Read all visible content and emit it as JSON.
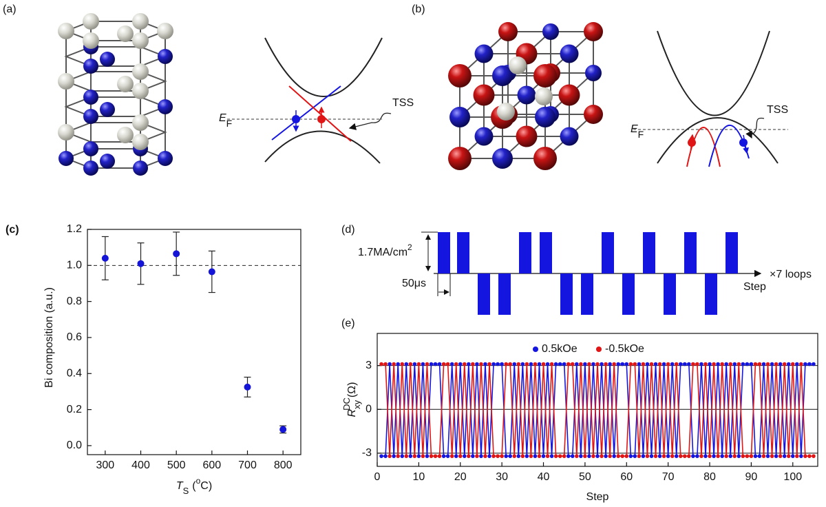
{
  "panels": {
    "a": {
      "label": "(a)",
      "fermi_level": {
        "symbol": "E",
        "subscript": "F"
      },
      "state": "TSS"
    },
    "b": {
      "label": "(b)",
      "fermi_level": {
        "symbol": "E",
        "subscript": "F"
      },
      "state": "TSS"
    },
    "d": {
      "label": "(d)",
      "amplitude": {
        "text": "1.7MA/cm",
        "superscript": "2"
      },
      "width": "50μs",
      "repeat": "×7 loops",
      "axis": "Step"
    }
  },
  "chart_data": [
    {
      "type": "scatter",
      "label": "(c)",
      "xlabel": {
        "symbol": "T",
        "subscript": "S",
        "open": "(",
        "superscript": "o",
        "close": "C)"
      },
      "ylabel": "Bi composition (a.u.)",
      "x": [
        300,
        400,
        500,
        600,
        700,
        800
      ],
      "values": [
        1.04,
        1.01,
        1.065,
        0.965,
        0.325,
        0.09
      ],
      "errors": [
        0.12,
        0.115,
        0.12,
        0.115,
        0.055,
        0.02
      ],
      "color": "#1515d8",
      "reference_line": 1,
      "xlim": [
        250,
        850
      ],
      "ylim": [
        -0.05,
        1.2
      ],
      "xticks": [
        300,
        400,
        500,
        600,
        700,
        800
      ],
      "yticks": [
        {
          "value": 0,
          "label": "0.0"
        },
        0.2,
        0.4,
        0.6,
        0.8,
        {
          "value": 1,
          "label": "1.0"
        },
        1.2
      ]
    },
    {
      "type": "line",
      "label": "(e)",
      "xlabel": "Step",
      "ylabel": {
        "symbol": "R",
        "subscript": "xy",
        "superscript": "DC",
        "unit": "(Ω)"
      },
      "x": [
        1,
        2,
        3,
        4,
        5,
        6,
        7,
        8,
        9,
        10,
        11,
        12,
        13,
        14,
        15,
        16,
        17,
        18,
        19,
        20,
        21,
        22,
        23,
        24,
        25,
        26,
        27,
        28,
        29,
        30,
        31,
        32,
        33,
        34,
        35,
        36,
        37,
        38,
        39,
        40,
        41,
        42,
        43,
        44,
        45,
        46,
        47,
        48,
        49,
        50,
        51,
        52,
        53,
        54,
        55,
        56,
        57,
        58,
        59,
        60,
        61,
        62,
        63,
        64,
        65,
        66,
        67,
        68,
        69,
        70,
        71,
        72,
        73,
        74,
        75,
        76,
        77,
        78,
        79,
        80,
        81,
        82,
        83,
        84,
        85,
        86,
        87,
        88,
        89,
        90,
        91,
        92,
        93,
        94,
        95,
        96,
        97,
        98,
        99,
        100,
        101,
        102,
        103,
        104,
        105
      ],
      "series": [
        {
          "name": "0.5kOe",
          "color": "#1515e0",
          "values": [
            -3.2,
            -3.2,
            3.1,
            -3.2,
            3.1,
            -3.2,
            3.1,
            -3.2,
            3.1,
            -3.2,
            3.1,
            -3.2,
            3.1,
            3.1,
            3.1,
            -3.2,
            -3.2,
            3.1,
            -3.2,
            3.1,
            -3.2,
            3.1,
            -3.2,
            3.1,
            -3.2,
            3.1,
            -3.2,
            3.1,
            3.1,
            3.1,
            -3.2,
            -3.2,
            3.1,
            -3.2,
            3.1,
            -3.2,
            3.1,
            -3.2,
            3.1,
            -3.2,
            3.1,
            -3.2,
            3.1,
            3.1,
            3.1,
            -3.2,
            -3.2,
            3.1,
            -3.2,
            3.1,
            -3.2,
            3.1,
            -3.2,
            3.1,
            -3.2,
            3.1,
            -3.2,
            3.1,
            3.1,
            3.1,
            -3.2,
            -3.2,
            3.1,
            -3.2,
            3.1,
            -3.2,
            3.1,
            -3.2,
            3.1,
            -3.2,
            3.1,
            -3.2,
            3.1,
            3.1,
            3.1,
            -3.2,
            -3.2,
            3.1,
            -3.2,
            3.1,
            -3.2,
            3.1,
            -3.2,
            3.1,
            -3.2,
            3.1,
            -3.2,
            3.1,
            3.1,
            3.1,
            -3.2,
            -3.2,
            3.1,
            -3.2,
            3.1,
            -3.2,
            3.1,
            -3.2,
            3.1,
            -3.2,
            3.1,
            -3.2,
            3.1,
            3.1,
            3.1
          ]
        },
        {
          "name": "-0.5kOe",
          "color": "#e01515",
          "values": [
            3.1,
            3.1,
            -3.2,
            3.1,
            -3.2,
            3.1,
            -3.2,
            3.1,
            -3.2,
            3.1,
            -3.2,
            3.1,
            -3.2,
            -3.2,
            -3.2,
            3.1,
            3.1,
            -3.2,
            3.1,
            -3.2,
            3.1,
            -3.2,
            3.1,
            -3.2,
            3.1,
            -3.2,
            3.1,
            -3.2,
            -3.2,
            -3.2,
            3.1,
            3.1,
            -3.2,
            3.1,
            -3.2,
            3.1,
            -3.2,
            3.1,
            -3.2,
            3.1,
            -3.2,
            3.1,
            -3.2,
            -3.2,
            -3.2,
            3.1,
            3.1,
            -3.2,
            3.1,
            -3.2,
            3.1,
            -3.2,
            3.1,
            -3.2,
            3.1,
            -3.2,
            3.1,
            -3.2,
            -3.2,
            -3.2,
            3.1,
            3.1,
            -3.2,
            3.1,
            -3.2,
            3.1,
            -3.2,
            3.1,
            -3.2,
            3.1,
            -3.2,
            3.1,
            -3.2,
            -3.2,
            -3.2,
            3.1,
            3.1,
            -3.2,
            3.1,
            -3.2,
            3.1,
            -3.2,
            3.1,
            -3.2,
            3.1,
            -3.2,
            3.1,
            -3.2,
            -3.2,
            -3.2,
            3.1,
            3.1,
            -3.2,
            3.1,
            -3.2,
            3.1,
            -3.2,
            3.1,
            -3.2,
            3.1,
            -3.2,
            3.1,
            -3.2,
            -3.2,
            -3.2
          ]
        }
      ],
      "xlim": [
        0,
        106
      ],
      "ylim": [
        -3.9,
        5.2
      ],
      "xticks": [
        0,
        10,
        20,
        30,
        40,
        50,
        60,
        70,
        80,
        90,
        100
      ],
      "yticks": [
        -3,
        0,
        3
      ],
      "grid": true,
      "legend": "top"
    }
  ]
}
